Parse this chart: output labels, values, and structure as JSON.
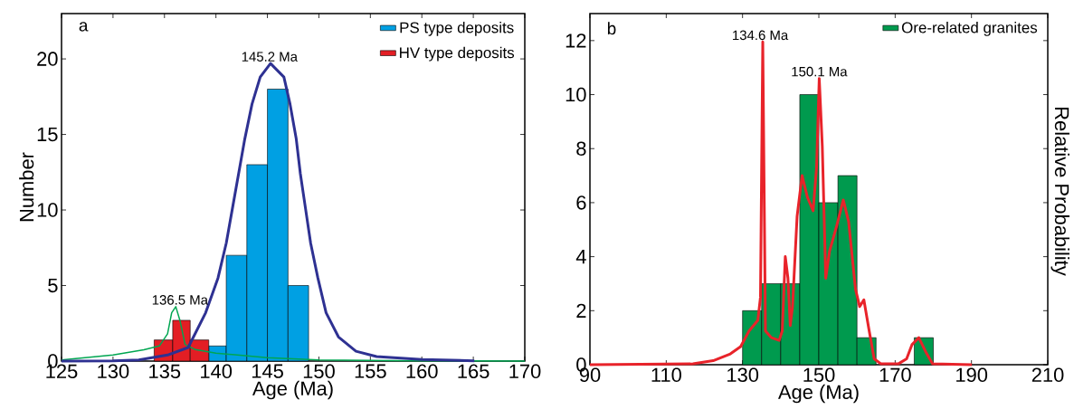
{
  "chart_data": [
    {
      "type": "histogram",
      "title": "a",
      "xlabel": "Age (Ma)",
      "ylabel": "Number",
      "xlim": [
        125,
        170
      ],
      "ylim": [
        0,
        23
      ],
      "xticks": [
        125,
        130,
        135,
        140,
        145,
        150,
        155,
        160,
        165,
        170
      ],
      "yticks": [
        0,
        5,
        10,
        15,
        20
      ],
      "legend": "top right",
      "series": [
        {
          "type": "histogram",
          "name": "PS type deposits",
          "color": "#00a0e3",
          "bins": [
            139.3,
            141,
            143,
            145,
            147,
            149
          ],
          "values": [
            1,
            7,
            13,
            18,
            5
          ]
        },
        {
          "type": "histogram",
          "name": "HV type deposits",
          "color": "#e31e24",
          "bins": [
            134,
            135.8,
            137.5,
            139.3
          ],
          "values": [
            1.4,
            2.7,
            1.4
          ]
        },
        {
          "type": "line",
          "color": "#00a651",
          "x": [
            125,
            130,
            133,
            134.5,
            135.3,
            135.7,
            136.1,
            136.5,
            137,
            138,
            140,
            145,
            150,
            160,
            170
          ],
          "values": [
            0.07,
            0.4,
            0.75,
            1.0,
            1.8,
            3.2,
            3.6,
            2.7,
            1.1,
            0.76,
            0.53,
            0.23,
            0.07,
            0.02,
            0
          ]
        },
        {
          "type": "line",
          "color": "#2e3192",
          "x": [
            125,
            130,
            132.5,
            135.3,
            137.3,
            139,
            140.2,
            141,
            141.6,
            142.2,
            142.8,
            143.5,
            144.3,
            145.3,
            146.6,
            147.2,
            147.8,
            148.2,
            148.7,
            149.2,
            149.9,
            150.7,
            151.9,
            153.6,
            155.6,
            160,
            165.1
          ],
          "values": [
            0,
            0.02,
            0.07,
            0.4,
            0.9,
            3.2,
            5.5,
            7.8,
            10.1,
            12.4,
            14.7,
            17,
            18.8,
            19.7,
            18.8,
            17,
            14.7,
            12.4,
            10.1,
            7.8,
            5.5,
            3.2,
            1.6,
            0.65,
            0.3,
            0.1,
            0.02
          ]
        }
      ],
      "annotations": [
        {
          "text": "145.2 Ma",
          "x": 145.2,
          "y": 19.7
        },
        {
          "text": "136.5 Ma",
          "x": 136.5,
          "y": 3.6
        }
      ]
    },
    {
      "type": "histogram",
      "title": "b",
      "xlabel": "Age (Ma)",
      "y2label": "Relative Probability",
      "xlim": [
        90,
        210
      ],
      "ylim": [
        0,
        13
      ],
      "xticks": [
        90,
        110,
        130,
        150,
        170,
        190,
        210
      ],
      "yticks": [
        0,
        2,
        4,
        6,
        8,
        10,
        12
      ],
      "legend": "top right",
      "series": [
        {
          "type": "histogram",
          "name": "Ore-related granites",
          "color": "#009a4e",
          "bins": [
            130,
            135,
            140,
            145,
            150,
            155,
            160,
            165,
            170,
            175,
            180
          ],
          "values": [
            2,
            3,
            3,
            10,
            6,
            7,
            1,
            0,
            0,
            1
          ]
        },
        {
          "type": "line",
          "color": "#e8232a",
          "x": [
            90,
            117,
            122.3,
            126.8,
            129.5,
            131.7,
            134,
            134.7,
            135.3,
            136,
            137.6,
            139.6,
            140.4,
            141.2,
            141.9,
            142.5,
            143.1,
            144.3,
            145.6,
            147,
            148.5,
            149.4,
            150.1,
            150.9,
            151.8,
            152.8,
            154.6,
            156.4,
            157.8,
            159.6,
            160.7,
            161.8,
            163.2,
            164.5,
            166.3,
            170.8,
            173,
            174.4,
            176.2,
            178,
            179.8,
            190.1
          ],
          "values": [
            0,
            0.03,
            0.15,
            0.4,
            0.67,
            1.25,
            1.64,
            2.5,
            11.95,
            1.25,
            1.0,
            0.9,
            1.25,
            4.0,
            3.2,
            1.45,
            2.15,
            5.5,
            7.0,
            6.2,
            5.7,
            7.3,
            10.6,
            8.1,
            3.2,
            4.2,
            5.1,
            6.1,
            5.3,
            2.8,
            2.15,
            2.4,
            1.25,
            0.22,
            0.03,
            0.03,
            0.22,
            0.74,
            1.0,
            0.48,
            0.03,
            0
          ]
        }
      ],
      "annotations": [
        {
          "text": "134.6 Ma",
          "x": 134.6,
          "y": 11.95
        },
        {
          "text": "150.1 Ma",
          "x": 150.1,
          "y": 10.6
        }
      ]
    }
  ]
}
